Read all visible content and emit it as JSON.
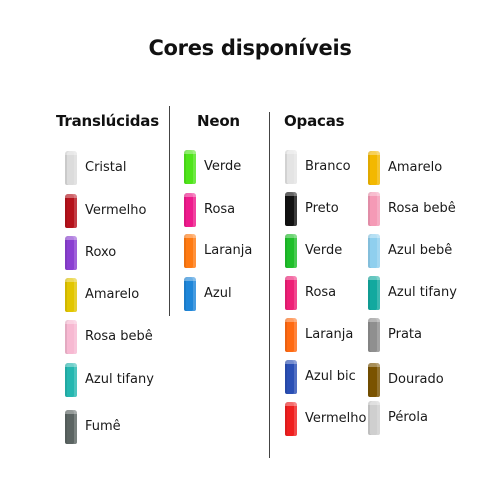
{
  "title": "Cores disponíveis",
  "columns": {
    "translucidas": {
      "heading": "Translúcidas",
      "items": [
        {
          "label": "Cristal",
          "color": "#dcdcdc"
        },
        {
          "label": "Vermelho",
          "color": "#b5121b"
        },
        {
          "label": "Roxo",
          "color": "#8a3fd1"
        },
        {
          "label": "Amarelo",
          "color": "#e2c600"
        },
        {
          "label": "Rosa bebê",
          "color": "#f7b9d2"
        },
        {
          "label": "Azul tifany",
          "color": "#25b7b0"
        },
        {
          "label": "Fumê",
          "color": "#5b6462"
        }
      ]
    },
    "neon": {
      "heading": "Neon",
      "items": [
        {
          "label": "Verde",
          "color": "#4fe51a"
        },
        {
          "label": "Rosa",
          "color": "#ee1a8c"
        },
        {
          "label": "Laranja",
          "color": "#ff7a12"
        },
        {
          "label": "Azul",
          "color": "#1e86d9"
        }
      ]
    },
    "opacas_left": {
      "heading": "Opacas",
      "items": [
        {
          "label": "Branco",
          "color": "#e4e4e4"
        },
        {
          "label": "Preto",
          "color": "#111111"
        },
        {
          "label": "Verde",
          "color": "#1fbf2a"
        },
        {
          "label": "Rosa",
          "color": "#ee1f76"
        },
        {
          "label": "Laranja",
          "color": "#ff6a12"
        },
        {
          "label": "Azul bic",
          "color": "#2a4fb5"
        },
        {
          "label": "Vermelho",
          "color": "#ef1f1f"
        }
      ]
    },
    "opacas_right": {
      "items": [
        {
          "label": "Amarelo",
          "color": "#f3b800"
        },
        {
          "label": "Rosa bebê",
          "color": "#f59ab6"
        },
        {
          "label": "Azul bebê",
          "color": "#8fcfee"
        },
        {
          "label": "Azul tifany",
          "color": "#12a99f"
        },
        {
          "label": "Prata",
          "color": "#8f8f8f"
        },
        {
          "label": "Dourado",
          "color": "#7a5300"
        },
        {
          "label": "Pérola",
          "color": "#cfcfcf"
        }
      ]
    }
  }
}
